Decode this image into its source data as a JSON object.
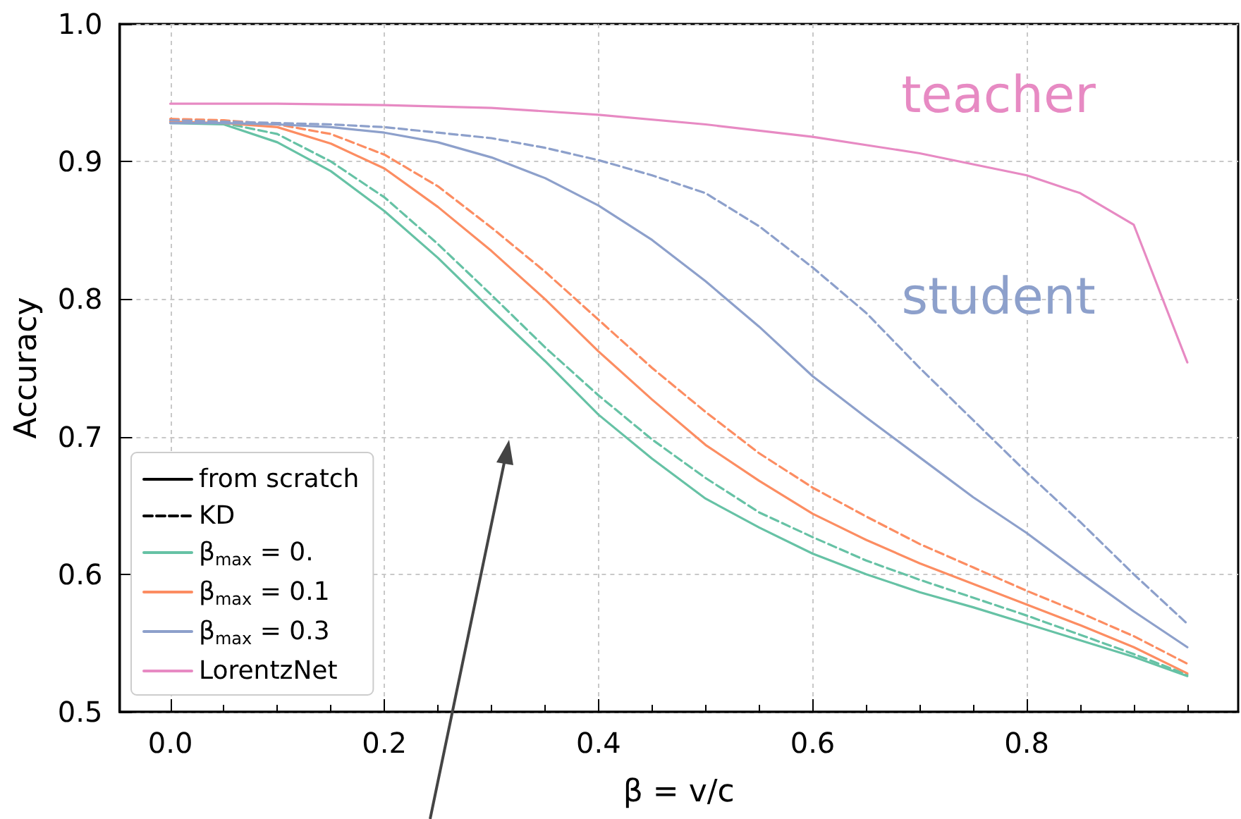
{
  "chart_data": {
    "type": "line",
    "xlabel": "β = v/c",
    "ylabel": "Accuracy",
    "x": [
      0,
      0.05,
      0.1,
      0.15,
      0.2,
      0.25,
      0.3,
      0.35,
      0.4,
      0.45,
      0.5,
      0.55,
      0.6,
      0.65,
      0.7,
      0.75,
      0.8,
      0.85,
      0.9,
      0.95
    ],
    "xlim": [
      -0.0475,
      0.9975
    ],
    "xticks": [
      {
        "value": 0,
        "label": "0.0"
      },
      0.2,
      0.4,
      0.6,
      0.8
    ],
    "ylim": [
      0.5,
      1.0
    ],
    "yticks": [
      0.5,
      0.6,
      0.7,
      0.8,
      0.9,
      {
        "value": 1.0,
        "label": "1.0"
      }
    ],
    "grid": true,
    "legend": "bottom left",
    "marker": "none",
    "series": [
      {
        "name": "from scratch",
        "color": "#000000",
        "line_style": "solid",
        "values": [
          null,
          null,
          null,
          null,
          null,
          null,
          null,
          null,
          null,
          null,
          null,
          null,
          null,
          null,
          null,
          null,
          null,
          null,
          null,
          null
        ]
      },
      {
        "name": "KD",
        "color": "#000000",
        "line_style": "dashed",
        "values": [
          null,
          null,
          null,
          null,
          null,
          null,
          null,
          null,
          null,
          null,
          null,
          null,
          null,
          null,
          null,
          null,
          null,
          null,
          null,
          null
        ]
      },
      {
        "name": "β$_{max}$ = 0.",
        "color": "#66c2a5",
        "line_style": "solid",
        "values": [
          0.928,
          0.927,
          0.914,
          0.893,
          0.864,
          0.83,
          0.792,
          0.755,
          0.716,
          0.684,
          0.655,
          0.634,
          0.615,
          0.6,
          0.587,
          0.576,
          0.564,
          0.552,
          0.54,
          0.526
        ]
      },
      {
        "color": "#66c2a5",
        "line_style": "dashed",
        "values": [
          0.929,
          0.928,
          0.92,
          0.9,
          0.874,
          0.84,
          0.803,
          0.765,
          0.73,
          0.698,
          0.67,
          0.645,
          0.627,
          0.61,
          0.596,
          0.583,
          0.57,
          0.556,
          0.542,
          0.527
        ]
      },
      {
        "name": "β$_{max}$ = 0.1",
        "color": "#fc8d62",
        "line_style": "solid",
        "values": [
          0.929,
          0.928,
          0.925,
          0.913,
          0.895,
          0.867,
          0.835,
          0.8,
          0.762,
          0.727,
          0.694,
          0.668,
          0.644,
          0.625,
          0.608,
          0.593,
          0.578,
          0.563,
          0.547,
          0.528
        ]
      },
      {
        "color": "#fc8d62",
        "line_style": "dashed",
        "values": [
          0.931,
          0.93,
          0.927,
          0.92,
          0.905,
          0.882,
          0.852,
          0.82,
          0.785,
          0.75,
          0.718,
          0.688,
          0.663,
          0.642,
          0.622,
          0.605,
          0.588,
          0.572,
          0.555,
          0.535
        ]
      },
      {
        "name": "β$_{max}$ = 0.3",
        "color": "#8da0cb",
        "line_style": "solid",
        "values": [
          0.928,
          0.928,
          0.927,
          0.925,
          0.921,
          0.914,
          0.903,
          0.888,
          0.868,
          0.843,
          0.813,
          0.78,
          0.744,
          0.714,
          0.685,
          0.656,
          0.63,
          0.601,
          0.573,
          0.547
        ]
      },
      {
        "color": "#8da0cb",
        "line_style": "dashed",
        "values": [
          0.93,
          0.929,
          0.928,
          0.927,
          0.925,
          0.921,
          0.917,
          0.91,
          0.901,
          0.89,
          0.877,
          0.853,
          0.823,
          0.79,
          0.75,
          0.712,
          0.674,
          0.638,
          0.6,
          0.564
        ]
      },
      {
        "name": "LorentzNet",
        "color": "#e78ac3",
        "line_style": "solid",
        "x": [
          0,
          0.1,
          0.2,
          0.3,
          0.4,
          0.5,
          0.6,
          0.7,
          0.8,
          0.85,
          0.9,
          0.95
        ],
        "values": [
          0.942,
          0.942,
          0.941,
          0.939,
          0.934,
          0.927,
          0.918,
          0.906,
          0.89,
          0.877,
          0.854,
          0.754
        ]
      }
    ],
    "annotations": [
      "teacher",
      "student"
    ]
  }
}
